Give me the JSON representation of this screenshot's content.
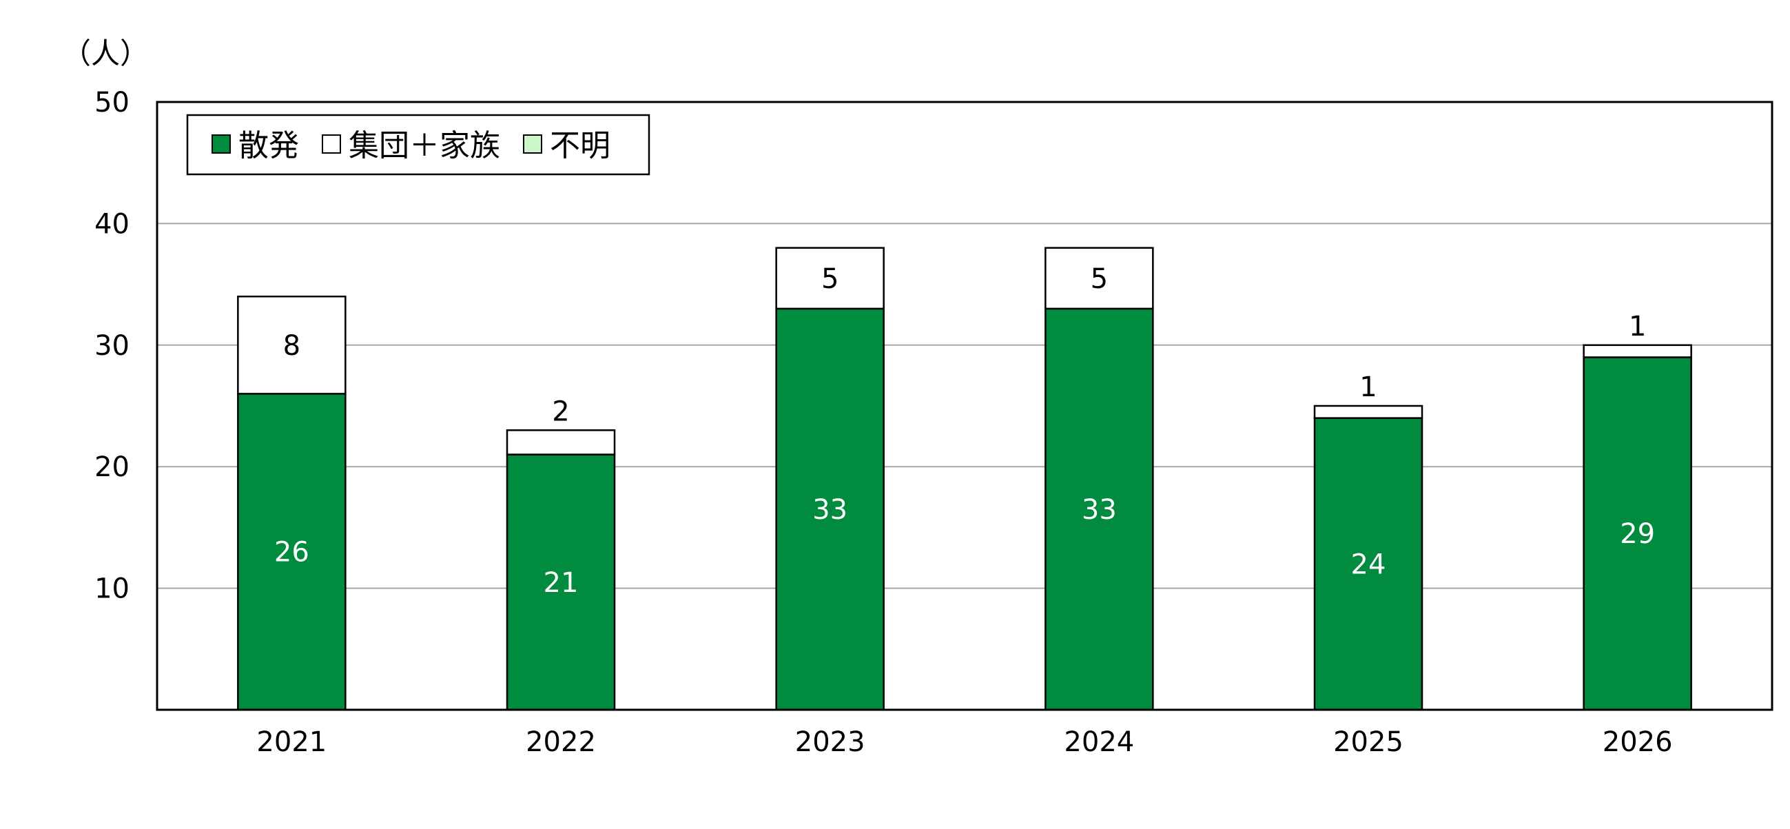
{
  "chart_data": {
    "type": "bar",
    "stacked": true,
    "unit_label": "（人）",
    "categories": [
      "2021",
      "2022",
      "2023",
      "2024",
      "2025",
      "2026"
    ],
    "series": [
      {
        "name": "散発",
        "values": [
          26,
          21,
          33,
          33,
          24,
          29
        ],
        "color": "#008B3E",
        "label_color": "#ffffff"
      },
      {
        "name": "集団＋家族",
        "values": [
          8,
          2,
          5,
          5,
          1,
          1
        ],
        "color": "#ffffff",
        "label_color": "#000000"
      },
      {
        "name": "不明",
        "values": [
          0,
          0,
          0,
          0,
          0,
          0
        ],
        "color": "#CCF5C8",
        "label_color": "#000000"
      }
    ],
    "yticks": [
      10,
      20,
      30,
      40,
      50
    ],
    "ylim": [
      0,
      50
    ],
    "grid": true,
    "legend_position": "top-left"
  }
}
